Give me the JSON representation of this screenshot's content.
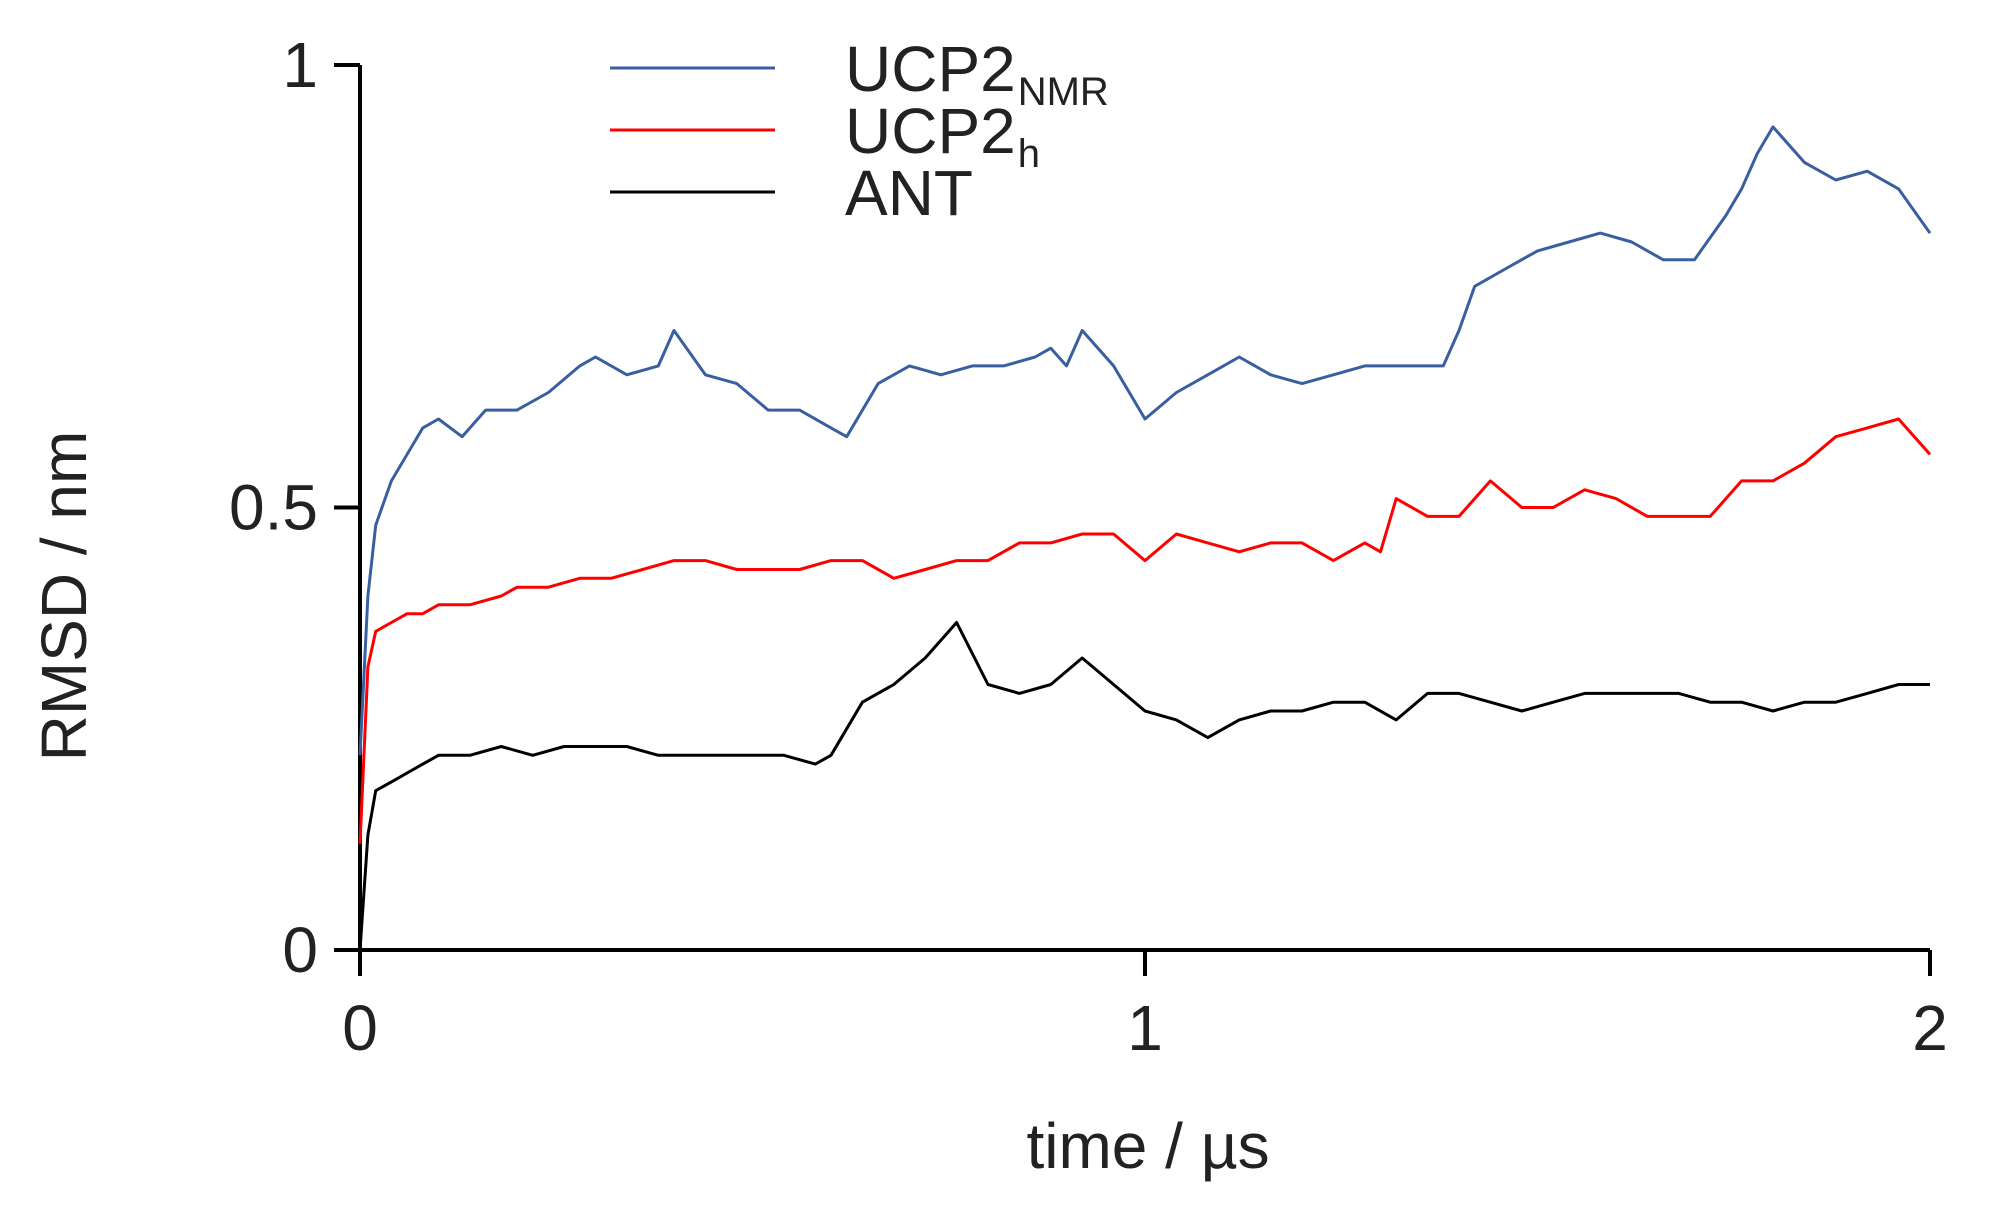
{
  "chart_data": {
    "type": "line",
    "title": "",
    "xlabel": "time / µs",
    "ylabel": "RMSD / nm",
    "xlim": [
      0,
      2
    ],
    "ylim": [
      0,
      1
    ],
    "xticks": [
      {
        "value": 0,
        "label": "0"
      },
      {
        "value": 1,
        "label": "1"
      },
      {
        "value": 2,
        "label": "2"
      }
    ],
    "yticks": [
      {
        "value": 0,
        "label": "0"
      },
      {
        "value": 0.5,
        "label": "0.5"
      },
      {
        "value": 1,
        "label": "1"
      }
    ],
    "grid": false,
    "legend_position": "top-center",
    "series": [
      {
        "name": "UCP2",
        "name_subscript": "NMR",
        "color": "#3a5fa0",
        "x": [
          0,
          0.01,
          0.02,
          0.04,
          0.06,
          0.08,
          0.1,
          0.13,
          0.16,
          0.2,
          0.24,
          0.28,
          0.3,
          0.34,
          0.38,
          0.4,
          0.44,
          0.48,
          0.52,
          0.56,
          0.6,
          0.62,
          0.66,
          0.7,
          0.74,
          0.78,
          0.82,
          0.86,
          0.88,
          0.9,
          0.92,
          0.96,
          1.0,
          1.04,
          1.08,
          1.12,
          1.16,
          1.2,
          1.24,
          1.28,
          1.32,
          1.36,
          1.38,
          1.4,
          1.42,
          1.46,
          1.5,
          1.54,
          1.58,
          1.62,
          1.66,
          1.7,
          1.74,
          1.76,
          1.78,
          1.8,
          1.84,
          1.88,
          1.92,
          1.96,
          2.0
        ],
        "y": [
          0.22,
          0.4,
          0.48,
          0.53,
          0.56,
          0.59,
          0.6,
          0.58,
          0.61,
          0.61,
          0.63,
          0.66,
          0.67,
          0.65,
          0.66,
          0.7,
          0.65,
          0.64,
          0.61,
          0.61,
          0.59,
          0.58,
          0.64,
          0.66,
          0.65,
          0.66,
          0.66,
          0.67,
          0.68,
          0.66,
          0.7,
          0.66,
          0.6,
          0.63,
          0.65,
          0.67,
          0.65,
          0.64,
          0.65,
          0.66,
          0.66,
          0.66,
          0.66,
          0.7,
          0.75,
          0.77,
          0.79,
          0.8,
          0.81,
          0.8,
          0.78,
          0.78,
          0.83,
          0.86,
          0.9,
          0.93,
          0.89,
          0.87,
          0.88,
          0.86,
          0.81
        ]
      },
      {
        "name": "UCP2",
        "name_subscript": "h",
        "color": "#ff0000",
        "x": [
          0,
          0.01,
          0.02,
          0.04,
          0.06,
          0.08,
          0.1,
          0.14,
          0.18,
          0.2,
          0.24,
          0.28,
          0.32,
          0.36,
          0.4,
          0.44,
          0.48,
          0.52,
          0.56,
          0.6,
          0.64,
          0.68,
          0.72,
          0.76,
          0.8,
          0.84,
          0.88,
          0.92,
          0.96,
          1.0,
          1.04,
          1.08,
          1.12,
          1.16,
          1.2,
          1.24,
          1.28,
          1.3,
          1.32,
          1.36,
          1.4,
          1.44,
          1.48,
          1.52,
          1.56,
          1.6,
          1.64,
          1.68,
          1.72,
          1.76,
          1.8,
          1.84,
          1.88,
          1.92,
          1.96,
          2.0
        ],
        "y": [
          0.12,
          0.32,
          0.36,
          0.37,
          0.38,
          0.38,
          0.39,
          0.39,
          0.4,
          0.41,
          0.41,
          0.42,
          0.42,
          0.43,
          0.44,
          0.44,
          0.43,
          0.43,
          0.43,
          0.44,
          0.44,
          0.42,
          0.43,
          0.44,
          0.44,
          0.46,
          0.46,
          0.47,
          0.47,
          0.44,
          0.47,
          0.46,
          0.45,
          0.46,
          0.46,
          0.44,
          0.46,
          0.45,
          0.51,
          0.49,
          0.49,
          0.53,
          0.5,
          0.5,
          0.52,
          0.51,
          0.49,
          0.49,
          0.49,
          0.53,
          0.53,
          0.55,
          0.58,
          0.59,
          0.6,
          0.56
        ]
      },
      {
        "name": "ANT",
        "name_subscript": "",
        "color": "#000000",
        "x": [
          0,
          0.01,
          0.02,
          0.04,
          0.06,
          0.08,
          0.1,
          0.14,
          0.18,
          0.22,
          0.26,
          0.3,
          0.34,
          0.38,
          0.42,
          0.46,
          0.5,
          0.54,
          0.58,
          0.6,
          0.64,
          0.68,
          0.72,
          0.74,
          0.76,
          0.8,
          0.84,
          0.88,
          0.92,
          0.96,
          1.0,
          1.04,
          1.08,
          1.12,
          1.16,
          1.2,
          1.24,
          1.28,
          1.32,
          1.36,
          1.4,
          1.44,
          1.48,
          1.52,
          1.56,
          1.6,
          1.64,
          1.68,
          1.72,
          1.76,
          1.8,
          1.84,
          1.88,
          1.92,
          1.96,
          2.0
        ],
        "y": [
          0.0,
          0.13,
          0.18,
          0.19,
          0.2,
          0.21,
          0.22,
          0.22,
          0.23,
          0.22,
          0.23,
          0.23,
          0.23,
          0.22,
          0.22,
          0.22,
          0.22,
          0.22,
          0.21,
          0.22,
          0.28,
          0.3,
          0.33,
          0.35,
          0.37,
          0.3,
          0.29,
          0.3,
          0.33,
          0.3,
          0.27,
          0.26,
          0.24,
          0.26,
          0.27,
          0.27,
          0.28,
          0.28,
          0.26,
          0.29,
          0.29,
          0.28,
          0.27,
          0.28,
          0.29,
          0.29,
          0.29,
          0.29,
          0.28,
          0.28,
          0.27,
          0.28,
          0.28,
          0.29,
          0.3,
          0.3
        ]
      }
    ]
  }
}
